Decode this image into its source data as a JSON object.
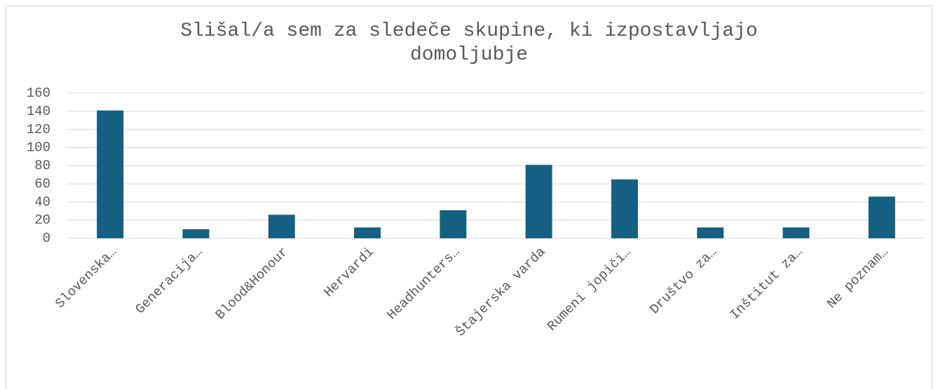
{
  "chart_data": {
    "type": "bar",
    "title": "Slišal/a sem za sledeče skupine, ki izpostavljajo domoljubje",
    "categories": [
      "Slovenska…",
      "Generacija…",
      "Blood&Honour",
      "Hervardi",
      "Headhunters…",
      "Štajerska varda",
      "Rumeni jopiči…",
      "Društvo za…",
      "Inštitut za…",
      "Ne poznam…"
    ],
    "values": [
      141,
      10,
      26,
      12,
      31,
      81,
      65,
      12,
      12,
      46
    ],
    "color": "#156082",
    "ylim": [
      0,
      160
    ],
    "yticks": [
      0,
      20,
      40,
      60,
      80,
      100,
      120,
      140,
      160
    ],
    "grid": true
  }
}
